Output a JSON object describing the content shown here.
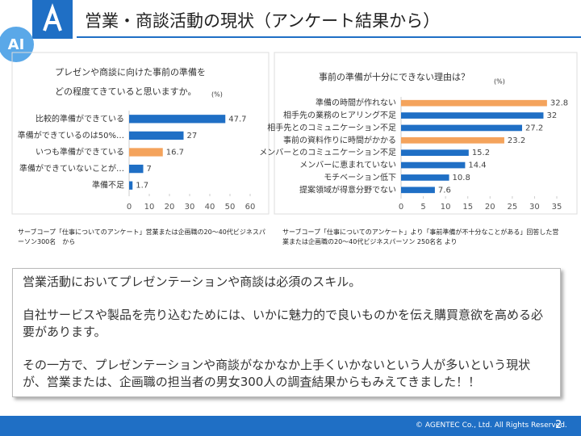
{
  "header": {
    "title": "営業・商談活動の現状（アンケート結果から）",
    "badge": "AI"
  },
  "chart_data": [
    {
      "type": "hbar",
      "title": [
        "プレゼンや商談に向けた事前の準備を",
        "どの程度てきていると思いますか。"
      ],
      "unit": "(%)",
      "categories": [
        "比較的準備ができている",
        "準備ができているのは50%…",
        "いつも準備ができている",
        "準備ができていないことが…",
        "準備不足"
      ],
      "values": [
        47.7,
        27,
        16.7,
        7,
        1.7
      ],
      "colors": [
        "#1f6fc5",
        "#1f6fc5",
        "#f4a35c",
        "#1f6fc5",
        "#1f6fc5"
      ],
      "xlim": [
        0,
        60
      ],
      "xticks": [
        0,
        10,
        20,
        30,
        40,
        50,
        60
      ],
      "source": "サーブコープ「仕事についてのアンケート」営業または企画職の20～40代ビジネスパーソン300名　から"
    },
    {
      "type": "hbar",
      "title": [
        "事前の準備が十分にできない理由は？"
      ],
      "unit": "(%)",
      "categories": [
        "準備の時間が作れない",
        "相手先の業務のヒアリング不足",
        "相手先とのコミュニケーション不足",
        "事前の資料作りに時間がかかる",
        "メンバーとのコミュニケーション不足",
        "メンバーに恵まれていない",
        "モチベーション低下",
        "提案領域が得意分野でない"
      ],
      "values": [
        32.8,
        32,
        27.2,
        23.2,
        15.2,
        14.4,
        10.8,
        7.6
      ],
      "colors": [
        "#f4a35c",
        "#1f6fc5",
        "#1f6fc5",
        "#f4a35c",
        "#1f6fc5",
        "#1f6fc5",
        "#1f6fc5",
        "#1f6fc5"
      ],
      "xlim": [
        0,
        35
      ],
      "xticks": [
        0,
        5,
        10,
        15,
        20,
        25,
        30,
        35
      ],
      "source": "サーブコープ「仕事についてのアンケート」より「事前準備が不十分なことがある」回答した営業または企画職の20～40代ビジネスパーソン 250名名 より"
    }
  ],
  "body": {
    "paragraphs": [
      "営業活動においてプレゼンテーションや商談は必須のスキル。",
      "自社サービスや製品を売り込むためには、いかに魅力的で良いものかを伝え購買意欲を高める必要があります。",
      "その一方で、プレゼンテーションや商談がなかなか上手くいかないという人が多いという現状が、営業または、企画職の担当者の男女300人の調査結果からもみえてきました！！"
    ]
  },
  "footer": {
    "copyright": "© AGENTEC Co., Ltd. All Rights Reserved.",
    "page": "2"
  }
}
